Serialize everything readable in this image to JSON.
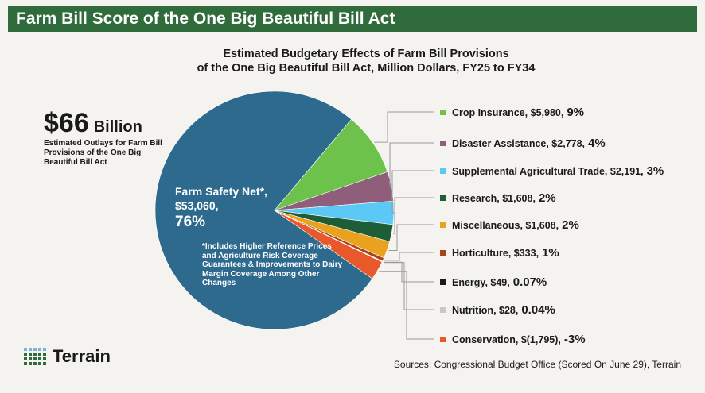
{
  "banner": {
    "title": "Farm Bill Score of the One Big Beautiful Bill Act"
  },
  "headline": {
    "value": "$66",
    "unit": "Billion",
    "description": "Estimated Outlays for Farm Bill Provisions of the One Big Beautiful Bill Act"
  },
  "footnote": "*Includes Higher Reference Prices and Agriculture Risk Coverage Guarantees & Improvements to Dairy Margin Coverage Among Other Changes",
  "logo": {
    "name": "Terrain"
  },
  "sources": "Sources: Congressional Budget Office (Scored On June 29), Terrain",
  "chart_data": {
    "type": "pie",
    "title_line1": "Estimated Budgetary Effects of Farm Bill Provisions",
    "title_line2": "of the One Big Beautiful Bill Act, Million Dollars, FY25 to FY34",
    "slices": [
      {
        "label": "Farm Safety Net*",
        "amount": "$53,060",
        "pct_text": "76%",
        "value": 53060,
        "color": "#2d6a8e"
      },
      {
        "label": "Crop Insurance",
        "amount": "$5,980",
        "pct_text": "9%",
        "value": 5980,
        "color": "#6cc24a"
      },
      {
        "label": "Disaster Assistance",
        "amount": "$2,778",
        "pct_text": "4%",
        "value": 2778,
        "color": "#8e5e7a"
      },
      {
        "label": "Supplemental Agricultural Trade",
        "amount": "$2,191",
        "pct_text": "3%",
        "value": 2191,
        "color": "#5bc8f5"
      },
      {
        "label": "Research",
        "amount": "$1,608",
        "pct_text": "2%",
        "value": 1608,
        "color": "#1e5e36"
      },
      {
        "label": "Miscellaneous",
        "amount": "$1,608",
        "pct_text": "2%",
        "value": 1608,
        "color": "#e8a21e"
      },
      {
        "label": "Horticulture",
        "amount": "$333",
        "pct_text": "1%",
        "value": 333,
        "color": "#a8441b"
      },
      {
        "label": "Energy",
        "amount": "$49",
        "pct_text": "0.07%",
        "value": 49,
        "color": "#1a1a1a"
      },
      {
        "label": "Nutrition",
        "amount": "$28",
        "pct_text": "0.04%",
        "value": 28,
        "color": "#c8c8c8"
      },
      {
        "label": "Conservation",
        "amount": "$(1,795)",
        "pct_text": "-3%",
        "value": -1795,
        "color": "#e8582a"
      }
    ]
  }
}
